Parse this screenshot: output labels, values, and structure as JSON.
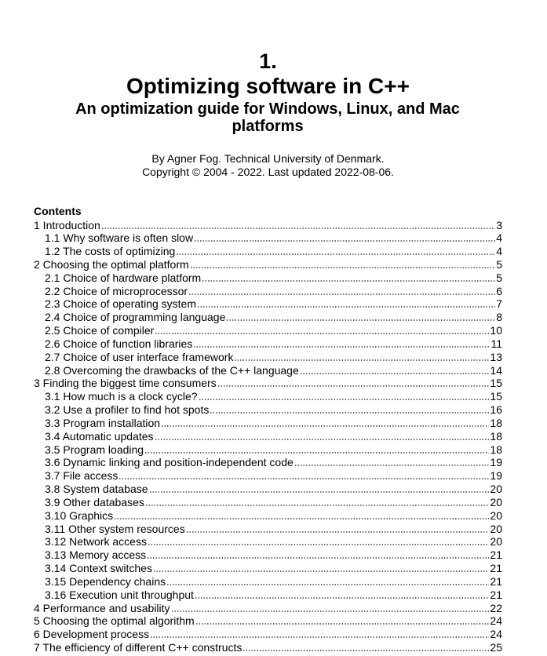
{
  "header": {
    "number": "1.",
    "title": "Optimizing software in C++",
    "subtitle": "An optimization guide for Windows, Linux, and Mac platforms",
    "author": "By Agner Fog. Technical University of Denmark.",
    "copyright": "Copyright © 2004 - 2022. Last updated 2022-08-06."
  },
  "contents": {
    "heading": "Contents",
    "entries": [
      {
        "level": 1,
        "label": "1 Introduction",
        "page": "3"
      },
      {
        "level": 2,
        "label": "1.1 Why software is often slow",
        "page": "4"
      },
      {
        "level": 2,
        "label": "1.2 The costs of optimizing",
        "page": "4"
      },
      {
        "level": 1,
        "label": "2 Choosing the optimal platform",
        "page": "5"
      },
      {
        "level": 2,
        "label": "2.1 Choice of hardware platform",
        "page": "5"
      },
      {
        "level": 2,
        "label": "2.2 Choice of microprocessor",
        "page": "6"
      },
      {
        "level": 2,
        "label": "2.3 Choice of operating system",
        "page": "7"
      },
      {
        "level": 2,
        "label": "2.4 Choice of programming language",
        "page": "8"
      },
      {
        "level": 2,
        "label": "2.5 Choice of compiler",
        "page": "10"
      },
      {
        "level": 2,
        "label": "2.6 Choice of function libraries",
        "page": "11"
      },
      {
        "level": 2,
        "label": "2.7 Choice of user interface framework",
        "page": "13"
      },
      {
        "level": 2,
        "label": "2.8 Overcoming the drawbacks of the C++ language",
        "page": "14"
      },
      {
        "level": 1,
        "label": "3 Finding the biggest time consumers",
        "page": "15"
      },
      {
        "level": 2,
        "label": "3.1 How much is a clock cycle?",
        "page": "15"
      },
      {
        "level": 2,
        "label": "3.2 Use a profiler to find hot spots",
        "page": "16"
      },
      {
        "level": 2,
        "label": "3.3 Program installation",
        "page": "18"
      },
      {
        "level": 2,
        "label": "3.4 Automatic updates",
        "page": "18"
      },
      {
        "level": 2,
        "label": "3.5 Program loading",
        "page": "18"
      },
      {
        "level": 2,
        "label": "3.6 Dynamic linking and position-independent code",
        "page": "19"
      },
      {
        "level": 2,
        "label": "3.7 File access",
        "page": "19"
      },
      {
        "level": 2,
        "label": "3.8 System database",
        "page": "20"
      },
      {
        "level": 2,
        "label": "3.9 Other databases",
        "page": "20"
      },
      {
        "level": 2,
        "label": "3.10 Graphics",
        "page": "20"
      },
      {
        "level": 2,
        "label": "3.11 Other system resources",
        "page": "20"
      },
      {
        "level": 2,
        "label": "3.12 Network access",
        "page": "20"
      },
      {
        "level": 2,
        "label": "3.13 Memory access",
        "page": "21"
      },
      {
        "level": 2,
        "label": "3.14 Context switches",
        "page": "21"
      },
      {
        "level": 2,
        "label": "3.15 Dependency chains",
        "page": "21"
      },
      {
        "level": 2,
        "label": "3.16 Execution unit throughput",
        "page": "21"
      },
      {
        "level": 1,
        "label": "4 Performance and usability",
        "page": "22"
      },
      {
        "level": 1,
        "label": "5 Choosing the optimal algorithm",
        "page": "24"
      },
      {
        "level": 1,
        "label": "6 Development process",
        "page": "24"
      },
      {
        "level": 1,
        "label": "7 The efficiency of different C++ constructs",
        "page": "25"
      }
    ]
  }
}
